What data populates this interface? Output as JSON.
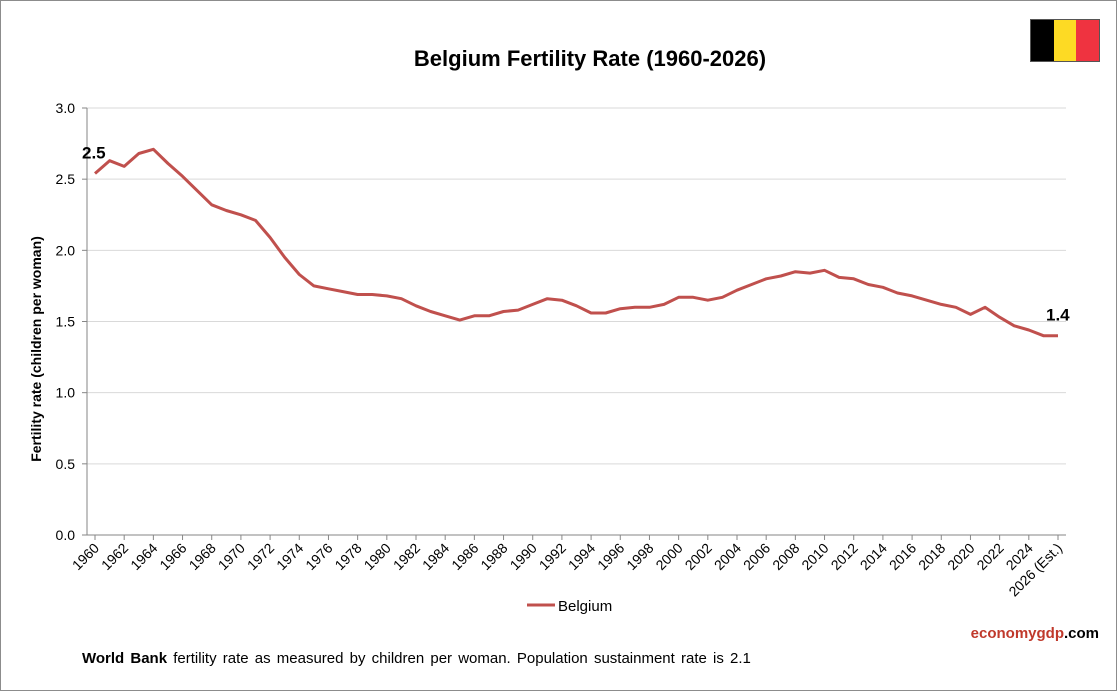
{
  "chart_data": {
    "type": "line",
    "title": "Belgium Fertility Rate (1960-2026)",
    "xlabel": "",
    "ylabel": "Fertility rate (children per woman)",
    "ylim": [
      0,
      3.0
    ],
    "yticks": [
      "0.0",
      "0.5",
      "1.0",
      "1.5",
      "2.0",
      "2.5",
      "3.0"
    ],
    "grid": true,
    "legend_position": "bottom",
    "x": [
      "1960",
      "1961",
      "1962",
      "1963",
      "1964",
      "1965",
      "1966",
      "1967",
      "1968",
      "1969",
      "1970",
      "1971",
      "1972",
      "1973",
      "1974",
      "1975",
      "1976",
      "1977",
      "1978",
      "1979",
      "1980",
      "1981",
      "1982",
      "1983",
      "1984",
      "1985",
      "1986",
      "1987",
      "1988",
      "1989",
      "1990",
      "1991",
      "1992",
      "1993",
      "1994",
      "1995",
      "1996",
      "1997",
      "1998",
      "1999",
      "2000",
      "2001",
      "2002",
      "2003",
      "2004",
      "2005",
      "2006",
      "2007",
      "2008",
      "2009",
      "2010",
      "2011",
      "2012",
      "2013",
      "2014",
      "2015",
      "2016",
      "2017",
      "2018",
      "2019",
      "2020",
      "2021",
      "2022",
      "2023",
      "2024",
      "2025",
      "2026 (Est.)"
    ],
    "xtick_labels": [
      "1960",
      "1962",
      "1964",
      "1966",
      "1968",
      "1970",
      "1972",
      "1974",
      "1976",
      "1978",
      "1980",
      "1982",
      "1984",
      "1986",
      "1988",
      "1990",
      "1992",
      "1994",
      "1996",
      "1998",
      "2000",
      "2002",
      "2004",
      "2006",
      "2008",
      "2010",
      "2012",
      "2014",
      "2016",
      "2018",
      "2020",
      "2022",
      "2024",
      "2026 (Est.)"
    ],
    "series": [
      {
        "name": "Belgium",
        "color": "#c0504d",
        "values": [
          2.54,
          2.63,
          2.59,
          2.68,
          2.71,
          2.61,
          2.52,
          2.42,
          2.32,
          2.28,
          2.25,
          2.21,
          2.09,
          1.95,
          1.83,
          1.75,
          1.73,
          1.71,
          1.69,
          1.69,
          1.68,
          1.66,
          1.61,
          1.57,
          1.54,
          1.51,
          1.54,
          1.54,
          1.57,
          1.58,
          1.62,
          1.66,
          1.65,
          1.61,
          1.56,
          1.56,
          1.59,
          1.6,
          1.6,
          1.62,
          1.67,
          1.67,
          1.65,
          1.67,
          1.72,
          1.76,
          1.8,
          1.82,
          1.85,
          1.84,
          1.86,
          1.81,
          1.8,
          1.76,
          1.74,
          1.7,
          1.68,
          1.65,
          1.62,
          1.6,
          1.55,
          1.6,
          1.53,
          1.47,
          1.44,
          1.4,
          1.4
        ]
      }
    ],
    "data_labels": [
      {
        "x": "1960",
        "text": "2.5"
      },
      {
        "x": "2026 (Est.)",
        "text": "1.4"
      }
    ]
  },
  "footer": {
    "brand_part1": "economygdp",
    "brand_part2": ".com",
    "source_bold": "World Bank",
    "source_text": " fertility rate as measured by children per woman.  Population sustainment rate is 2.1"
  },
  "flag": {
    "name": "belgium-flag",
    "colors": [
      "#000000",
      "#fdda24",
      "#ef3340"
    ]
  }
}
